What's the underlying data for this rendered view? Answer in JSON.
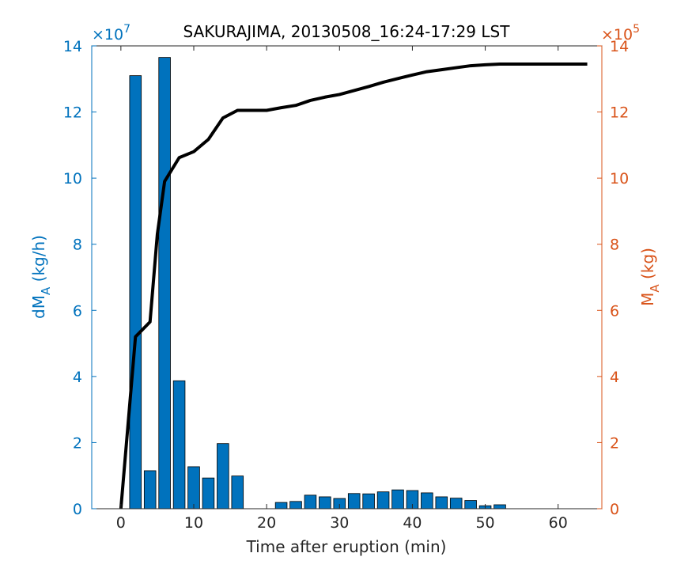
{
  "chart_data": {
    "type": "bar",
    "title": "SAKURAJIMA, 20130508_16:24-17:29 LST",
    "xlabel": "Time after eruption (min)",
    "xlim": [
      -4,
      66
    ],
    "xticks": [
      0,
      10,
      20,
      30,
      40,
      50,
      60
    ],
    "grid": false,
    "left_axis": {
      "label_main": "dM",
      "label_sub": "A",
      "label_unit": " (kg/h)",
      "color": "#0072BD",
      "ylim": [
        0,
        14
      ],
      "yticks": [
        0,
        2,
        4,
        6,
        8,
        10,
        12,
        14
      ],
      "exponent_label": "×10",
      "exponent_power": "7"
    },
    "right_axis": {
      "label_main": "M",
      "label_sub": "A",
      "label_unit": " (kg)",
      "color": "#D95319",
      "ylim": [
        0,
        14
      ],
      "yticks": [
        0,
        2,
        4,
        6,
        8,
        10,
        12,
        14
      ],
      "exponent_label": "×10",
      "exponent_power": "5"
    },
    "bars": {
      "axis": "left",
      "color": "#0072BD",
      "x": [
        2,
        4,
        6,
        8,
        10,
        12,
        14,
        16,
        18,
        20,
        22,
        24,
        26,
        28,
        30,
        32,
        34,
        36,
        38,
        40,
        42,
        44,
        46,
        48,
        50,
        52
      ],
      "values": [
        13.1,
        1.15,
        13.65,
        3.87,
        1.27,
        0.93,
        1.97,
        0.99,
        0,
        0,
        0.19,
        0.22,
        0.41,
        0.36,
        0.31,
        0.46,
        0.45,
        0.51,
        0.57,
        0.55,
        0.48,
        0.36,
        0.32,
        0.25,
        0.09,
        0.12
      ]
    },
    "line": {
      "axis": "right",
      "color": "#000000",
      "x": [
        0,
        2,
        4,
        5,
        6,
        8,
        10,
        12,
        14,
        16,
        18,
        20,
        22,
        24,
        26,
        28,
        30,
        32,
        34,
        36,
        38,
        40,
        42,
        44,
        46,
        48,
        50,
        52,
        54,
        56,
        58,
        60,
        62,
        64
      ],
      "values": [
        0,
        5.2,
        5.65,
        8.3,
        9.9,
        10.62,
        10.8,
        11.17,
        11.82,
        12.05,
        12.05,
        12.05,
        12.13,
        12.2,
        12.35,
        12.45,
        12.53,
        12.65,
        12.77,
        12.9,
        13.01,
        13.12,
        13.22,
        13.28,
        13.34,
        13.4,
        13.43,
        13.45,
        13.45,
        13.45,
        13.45,
        13.45,
        13.45,
        13.45
      ]
    }
  }
}
